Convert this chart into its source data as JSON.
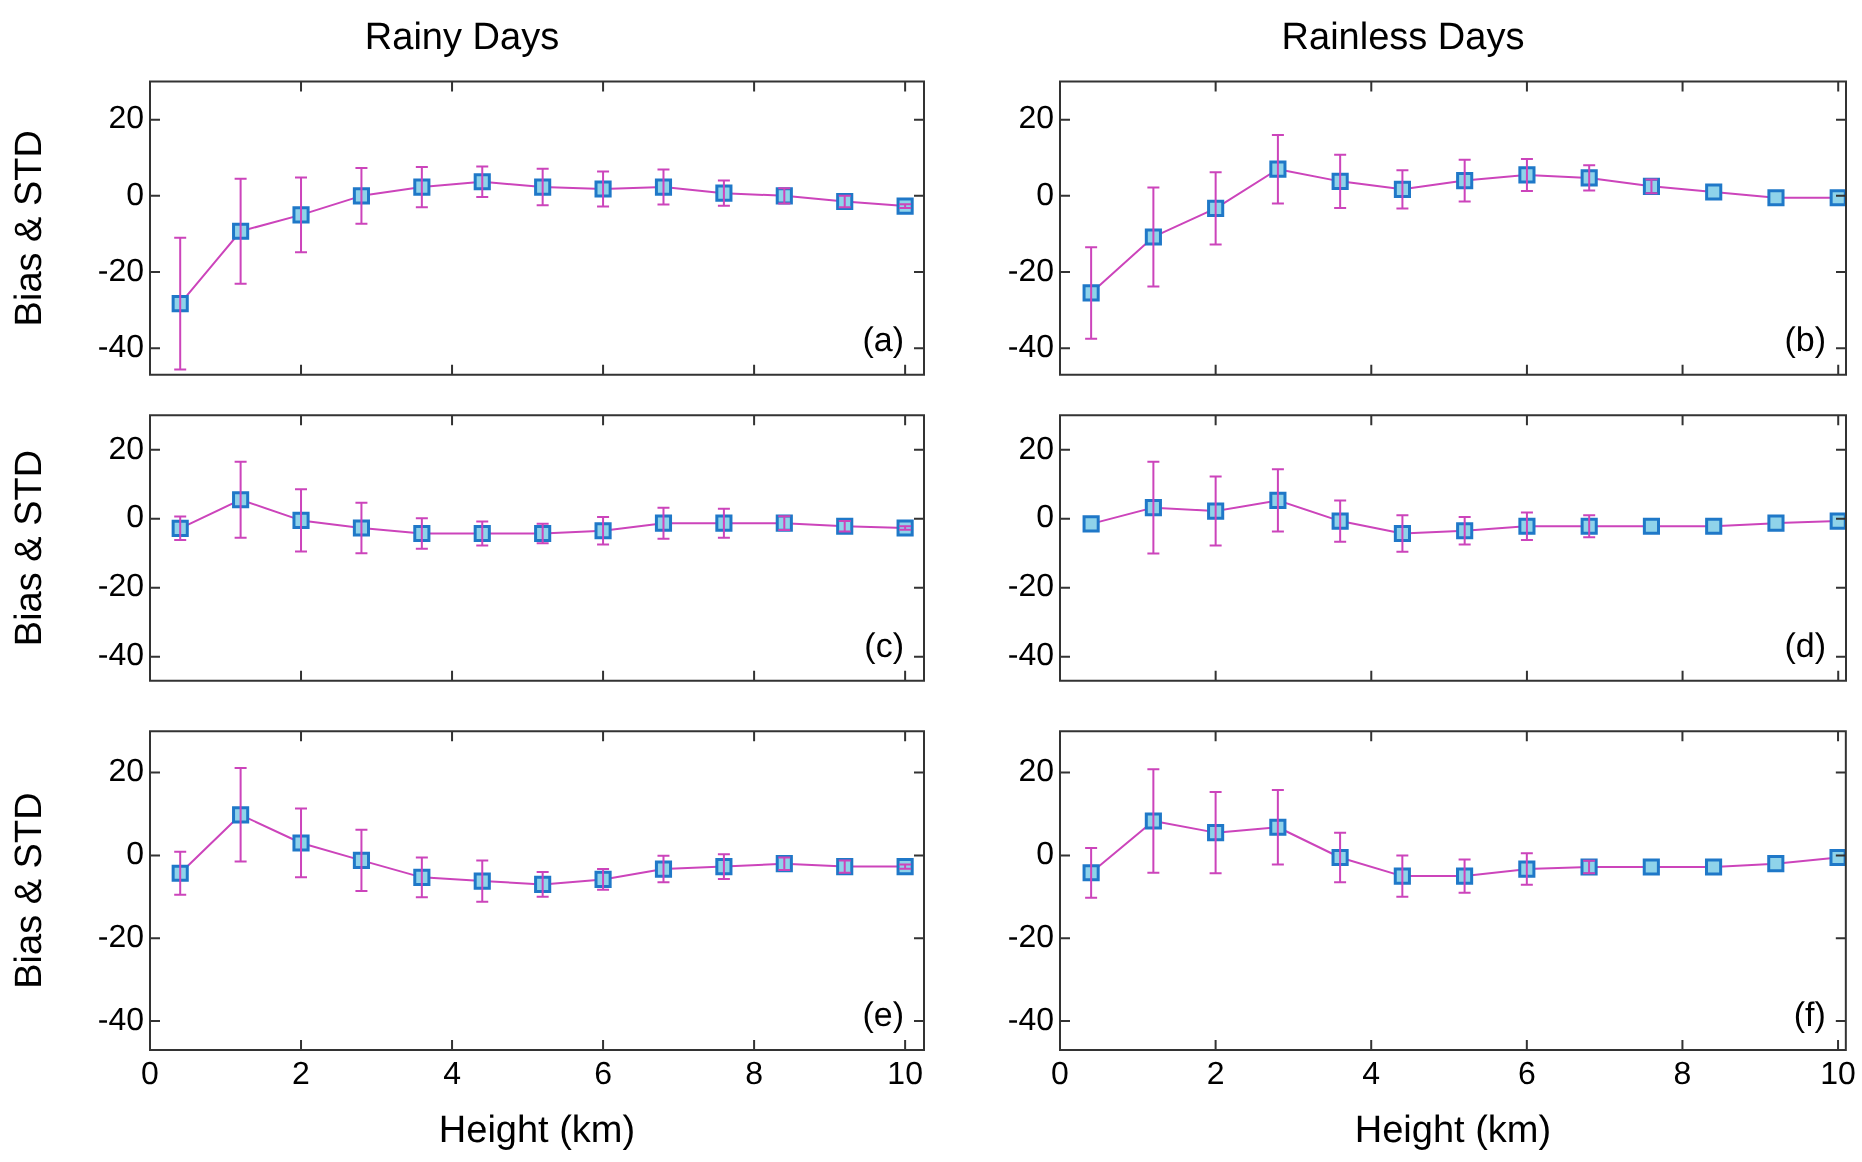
{
  "chart_data": [
    {
      "type": "line",
      "title": "Rainy Days",
      "ylabel": "Bias & STD",
      "annotations": [
        "(a)"
      ],
      "x": [
        0.4,
        1.2,
        2.0,
        2.8,
        3.6,
        4.4,
        5.2,
        6.0,
        6.8,
        7.6,
        8.4,
        9.2,
        10.0
      ],
      "xlim": [
        0,
        10.25
      ],
      "xticks": [
        0,
        2,
        4,
        6,
        8,
        10
      ],
      "ylim": [
        -47,
        30
      ],
      "yticks": [
        -40,
        -20,
        0,
        20
      ],
      "tick_labels": "y",
      "grid": false,
      "legend": false,
      "marker": "square",
      "line_style": "solid",
      "series": [
        {
          "color": "#cc44bb",
          "values": [
            -28.3,
            -9.3,
            -5,
            0,
            2.3,
            3.7,
            2.3,
            1.8,
            2.3,
            0.7,
            0,
            -1.5,
            -2.7
          ],
          "errors": [
            17.3,
            13.8,
            9.8,
            7.3,
            5.3,
            4,
            4.8,
            4.6,
            4.6,
            3.3,
            2,
            1.5,
            0.5
          ]
        }
      ]
    },
    {
      "type": "line",
      "title": "Rainless Days",
      "annotations": [
        "(b)"
      ],
      "x": [
        0.4,
        1.2,
        2.0,
        2.8,
        3.6,
        4.4,
        5.2,
        6.0,
        6.8,
        7.6,
        8.4,
        9.2,
        10.0
      ],
      "xlim": [
        0,
        10.1
      ],
      "xticks": [
        0,
        2,
        4,
        6,
        8,
        10
      ],
      "ylim": [
        -47,
        30
      ],
      "yticks": [
        -40,
        -20,
        0,
        20
      ],
      "tick_labels": "y",
      "grid": false,
      "legend": false,
      "marker": "square",
      "line_style": "solid",
      "series": [
        {
          "color": "#cc44bb",
          "values": [
            -25.5,
            -10.8,
            -3.3,
            7,
            3.8,
            1.7,
            4,
            5.5,
            4.7,
            2.5,
            1,
            -0.5,
            -0.5
          ],
          "errors": [
            12,
            13,
            9.5,
            9,
            7,
            5,
            5.5,
            4.2,
            3.3,
            1.8,
            null,
            null,
            null
          ]
        }
      ]
    },
    {
      "type": "line",
      "ylabel": "Bias & STD",
      "annotations": [
        "(c)"
      ],
      "x": [
        0.4,
        1.2,
        2.0,
        2.8,
        3.6,
        4.4,
        5.2,
        6.0,
        6.8,
        7.6,
        8.4,
        9.2,
        10.0
      ],
      "xlim": [
        0,
        10.25
      ],
      "xticks": [
        0,
        2,
        4,
        6,
        8,
        10
      ],
      "ylim": [
        -47,
        30
      ],
      "yticks": [
        -40,
        -20,
        0,
        20
      ],
      "tick_labels": "y",
      "grid": false,
      "legend": false,
      "marker": "square",
      "line_style": "solid",
      "series": [
        {
          "color": "#cc44bb",
          "values": [
            -2.8,
            5.5,
            -0.5,
            -2.7,
            -4.3,
            -4.3,
            -4.3,
            -3.5,
            -1.3,
            -1.3,
            -1.3,
            -2.2,
            -2.7
          ],
          "errors": [
            3.4,
            11,
            9,
            7.3,
            4.4,
            3.5,
            2.8,
            4,
            4.5,
            4.2,
            2,
            1.5,
            0.5
          ]
        }
      ]
    },
    {
      "type": "line",
      "annotations": [
        "(d)"
      ],
      "x": [
        0.4,
        1.2,
        2.0,
        2.8,
        3.6,
        4.4,
        5.2,
        6.0,
        6.8,
        7.6,
        8.4,
        9.2,
        10.0
      ],
      "xlim": [
        0,
        10.1
      ],
      "xticks": [
        0,
        2,
        4,
        6,
        8,
        10
      ],
      "ylim": [
        -47,
        30
      ],
      "yticks": [
        -40,
        -20,
        0,
        20
      ],
      "tick_labels": "y",
      "grid": false,
      "legend": false,
      "marker": "square",
      "line_style": "solid",
      "series": [
        {
          "color": "#cc44bb",
          "values": [
            -1.5,
            3.2,
            2.2,
            5.3,
            -0.7,
            -4.3,
            -3.5,
            -2.2,
            -2.2,
            -2.2,
            -2.2,
            -1.3,
            -0.7
          ],
          "errors": [
            null,
            13.3,
            10,
            9,
            6,
            5.3,
            4,
            4,
            3.2,
            null,
            null,
            null,
            null
          ]
        }
      ]
    },
    {
      "type": "line",
      "ylabel": "Bias & STD",
      "xlabel": "Height (km)",
      "annotations": [
        "(e)"
      ],
      "x": [
        0.4,
        1.2,
        2.0,
        2.8,
        3.6,
        4.4,
        5.2,
        6.0,
        6.8,
        7.6,
        8.4,
        9.2,
        10.0
      ],
      "xlim": [
        0,
        10.25
      ],
      "xticks": [
        0,
        2,
        4,
        6,
        8,
        10
      ],
      "ylim": [
        -47,
        30
      ],
      "yticks": [
        -40,
        -20,
        0,
        20
      ],
      "grid": false,
      "legend": false,
      "marker": "square",
      "line_style": "solid",
      "series": [
        {
          "color": "#cc44bb",
          "values": [
            -4.3,
            9.8,
            3,
            -1.2,
            -5.3,
            -6.2,
            -7,
            -5.8,
            -3.3,
            -2.7,
            -2,
            -2.7,
            -2.7
          ],
          "errors": [
            5.2,
            11.3,
            8.3,
            7.4,
            4.8,
            5,
            3,
            2.5,
            3.2,
            3,
            1.5,
            1.5,
            0.5
          ]
        }
      ]
    },
    {
      "type": "line",
      "xlabel": "Height (km)",
      "annotations": [
        "(f)"
      ],
      "x": [
        0.4,
        1.2,
        2.0,
        2.8,
        3.6,
        4.4,
        5.2,
        6.0,
        6.8,
        7.6,
        8.4,
        9.2,
        10.0
      ],
      "xlim": [
        0,
        10.1
      ],
      "xticks": [
        0,
        2,
        4,
        6,
        8,
        10
      ],
      "ylim": [
        -47,
        30
      ],
      "yticks": [
        -40,
        -20,
        0,
        20
      ],
      "grid": false,
      "legend": false,
      "marker": "square",
      "line_style": "solid",
      "series": [
        {
          "color": "#cc44bb",
          "values": [
            -4.2,
            8.3,
            5.5,
            6.8,
            -0.5,
            -5,
            -5,
            -3.3,
            -2.8,
            -2.8,
            -2.8,
            -2,
            -0.5
          ],
          "errors": [
            6,
            12.5,
            9.8,
            9,
            6,
            5,
            4,
            3.8,
            1.5,
            null,
            null,
            null,
            null
          ]
        }
      ]
    }
  ]
}
